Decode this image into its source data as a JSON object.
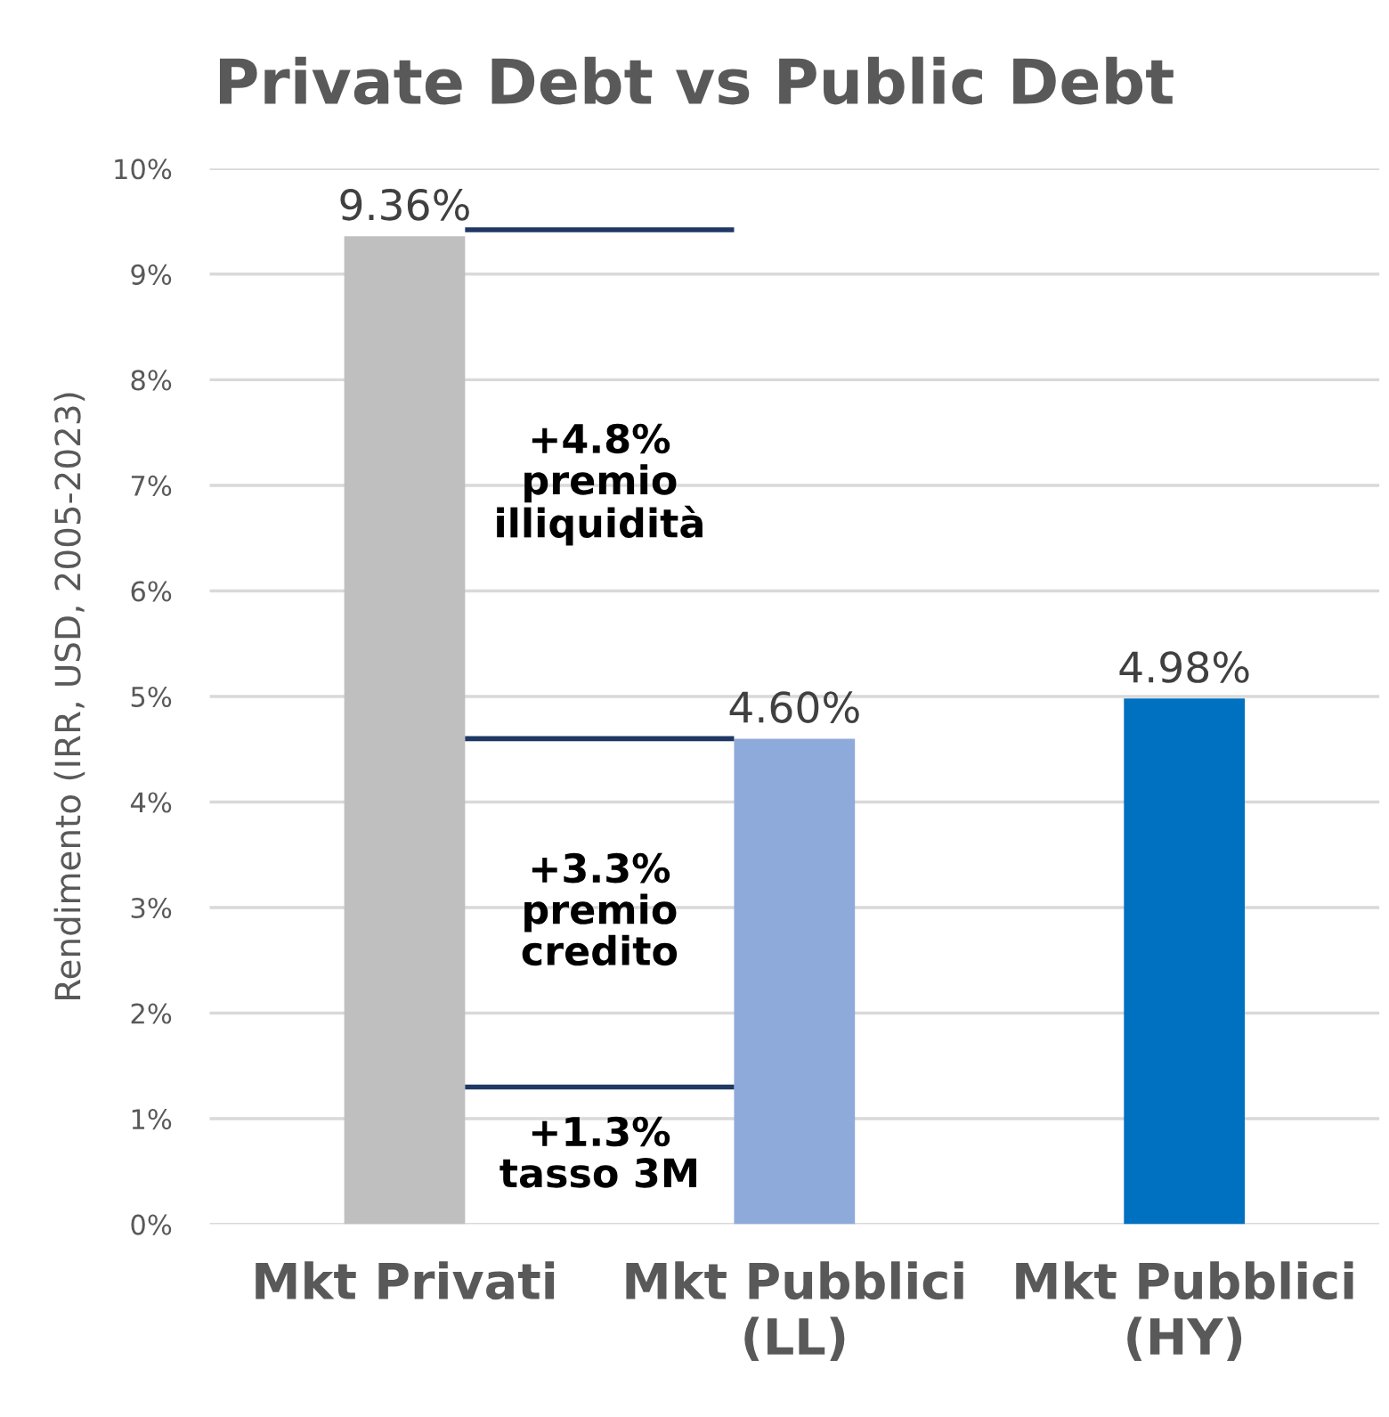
{
  "chart_data": {
    "type": "bar",
    "title": "Private Debt vs Public Debt",
    "ylabel": "Rendimento (IRR, USD, 2005-2023)",
    "categories": [
      "Mkt Privati",
      "Mkt Pubblici\n(LL)",
      "Mkt Pubblici\n(HY)"
    ],
    "values": [
      9.36,
      4.6,
      4.98
    ],
    "colors": [
      "#bfbfbf",
      "#8eaadb",
      "#0070c0"
    ],
    "value_labels": [
      "9.36%",
      "4.60%",
      "4.98%"
    ],
    "ylim": [
      0,
      10
    ],
    "yticks": [
      {
        "value": 0,
        "label": "0%"
      },
      {
        "value": 1,
        "label": "1%"
      },
      {
        "value": 2,
        "label": "2%"
      },
      {
        "value": 3,
        "label": "3%"
      },
      {
        "value": 4,
        "label": "4%"
      },
      {
        "value": 5,
        "label": "5%"
      },
      {
        "value": 6,
        "label": "6%"
      },
      {
        "value": 7,
        "label": "7%"
      },
      {
        "value": 8,
        "label": "8%"
      },
      {
        "value": 9,
        "label": "9%"
      },
      {
        "value": 10,
        "label": "10%"
      }
    ],
    "grid": "y",
    "ref_lines": [
      {
        "axis": "y",
        "value": 9.42,
        "color": "#1f3864"
      },
      {
        "axis": "y",
        "value": 4.6,
        "color": "#1f3864"
      },
      {
        "axis": "y",
        "value": 1.3,
        "color": "#1f3864"
      }
    ],
    "annotations": [
      "+4.8%\npremio\nilliquidità",
      "+3.3%\npremio\ncredito",
      "+1.3%\ntasso 3M"
    ]
  }
}
